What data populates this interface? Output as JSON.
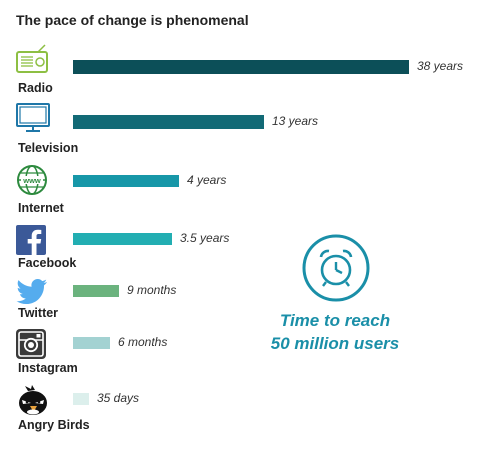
{
  "title": "The pace of change is phenomenal",
  "caption": {
    "line1": "Time to reach",
    "line2": "50 million users"
  },
  "colors": {
    "Radio": "#0c4f58",
    "Television": "#126a76",
    "Internet": "#1797a8",
    "Facebook": "#22aeb2",
    "Twitter": "#6bb37e",
    "Instagram": "#a3d2d2",
    "Angry Birds": "#dcefec",
    "caption": "#1a8fa8"
  },
  "chart_data": {
    "type": "bar",
    "orientation": "horizontal",
    "title": "The pace of change is phenomenal",
    "categories": [
      "Radio",
      "Television",
      "Internet",
      "Facebook",
      "Twitter",
      "Instagram",
      "Angry Birds"
    ],
    "values": [
      38,
      13,
      4,
      3.5,
      0.75,
      0.5,
      0.0959
    ],
    "value_unit": "years",
    "value_labels": [
      "38 years",
      "13 years",
      "4 years",
      "3.5 years",
      "9 months",
      "6 months",
      "35 days"
    ],
    "icons": [
      "radio-icon",
      "television-icon",
      "internet-globe-icon",
      "facebook-icon",
      "twitter-icon",
      "instagram-icon",
      "angry-birds-icon"
    ],
    "grid": false,
    "legend": "none"
  }
}
